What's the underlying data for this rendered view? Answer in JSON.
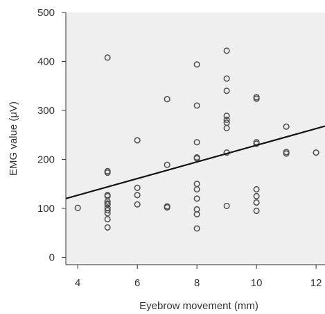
{
  "chart_data": {
    "type": "scatter",
    "title": "",
    "xlabel": "Eyebrow movement (mm)",
    "ylabel": "EMG value (μV)",
    "xlim": [
      3.6,
      12.3
    ],
    "ylim": [
      -15,
      500
    ],
    "xticks": [
      4,
      6,
      8,
      10,
      12
    ],
    "yticks": [
      0,
      100,
      200,
      300,
      400,
      500
    ],
    "grid": false,
    "background": "#efefef",
    "marker_color": "#555555",
    "line_color": "#111111",
    "series": [
      {
        "points": [
          [
            4,
            101
          ],
          [
            5,
            408
          ],
          [
            5,
            176
          ],
          [
            5,
            173
          ],
          [
            5,
            127
          ],
          [
            5,
            125
          ],
          [
            5,
            114
          ],
          [
            5,
            110
          ],
          [
            5,
            108
          ],
          [
            5,
            101
          ],
          [
            5,
            96
          ],
          [
            5,
            90
          ],
          [
            5,
            78
          ],
          [
            5,
            61
          ],
          [
            6,
            239
          ],
          [
            6,
            142
          ],
          [
            6,
            127
          ],
          [
            6,
            108
          ],
          [
            7,
            323
          ],
          [
            7,
            189
          ],
          [
            7,
            104
          ],
          [
            7,
            102
          ],
          [
            8,
            394
          ],
          [
            8,
            310
          ],
          [
            8,
            235
          ],
          [
            8,
            204
          ],
          [
            8,
            202
          ],
          [
            8,
            150
          ],
          [
            8,
            139
          ],
          [
            8,
            120
          ],
          [
            8,
            98
          ],
          [
            8,
            88
          ],
          [
            8,
            59
          ],
          [
            9,
            422
          ],
          [
            9,
            365
          ],
          [
            9,
            340
          ],
          [
            9,
            289
          ],
          [
            9,
            281
          ],
          [
            9,
            275
          ],
          [
            9,
            264
          ],
          [
            9,
            214
          ],
          [
            9,
            105
          ],
          [
            10,
            327
          ],
          [
            10,
            324
          ],
          [
            10,
            235
          ],
          [
            10,
            232
          ],
          [
            10,
            139
          ],
          [
            10,
            125
          ],
          [
            10,
            112
          ],
          [
            10,
            95
          ],
          [
            11,
            267
          ],
          [
            11,
            215
          ],
          [
            11,
            212
          ],
          [
            12,
            214
          ]
        ]
      }
    ],
    "trendline": {
      "x": [
        3.6,
        12.3
      ],
      "y": [
        120,
        268
      ]
    }
  }
}
